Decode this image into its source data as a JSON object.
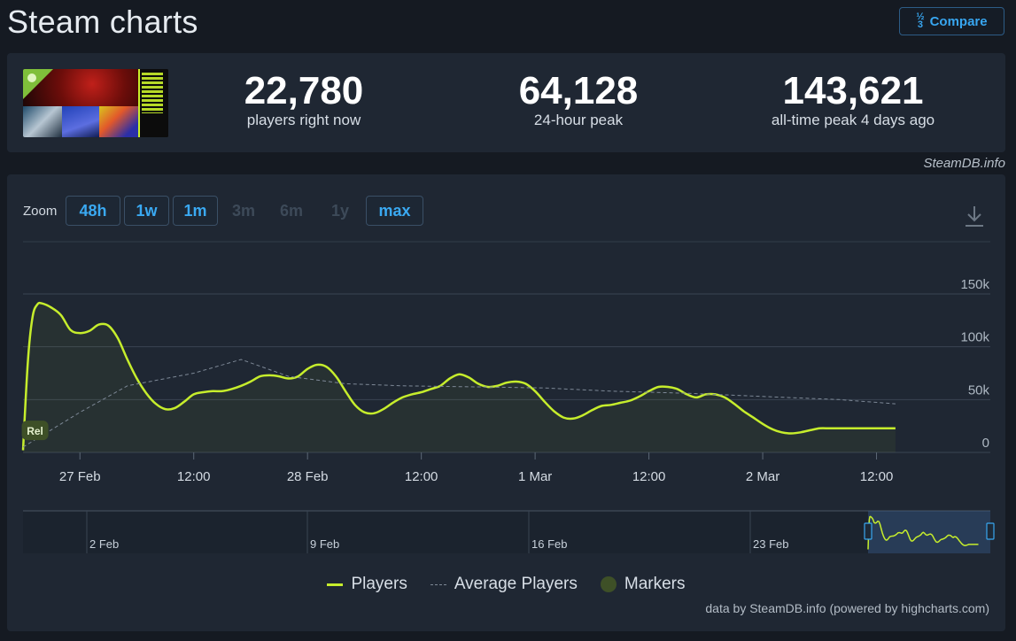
{
  "header": {
    "title": "Steam charts",
    "compare_icon": "1/2/3",
    "compare_label": "Compare"
  },
  "stats": {
    "current": {
      "value": "22,780",
      "label": "players right now"
    },
    "peak24": {
      "value": "64,128",
      "label": "24-hour peak"
    },
    "alltime": {
      "value": "143,621",
      "label": "all-time peak 4 days ago"
    }
  },
  "source_note": "SteamDB.info",
  "zoom": {
    "label": "Zoom",
    "buttons": [
      {
        "label": "48h",
        "state": "active"
      },
      {
        "label": "1w",
        "state": "active"
      },
      {
        "label": "1m",
        "state": "active"
      },
      {
        "label": "3m",
        "state": "disabled"
      },
      {
        "label": "6m",
        "state": "disabled"
      },
      {
        "label": "1y",
        "state": "disabled"
      },
      {
        "label": "max",
        "state": "active"
      }
    ]
  },
  "colors": {
    "players": "#c6ed2c",
    "average": "#7d8896",
    "marker": "#3e5027"
  },
  "chart_data": {
    "type": "line",
    "title": "",
    "xlabel": "",
    "ylabel": "",
    "ylim": [
      0,
      150000
    ],
    "yticks": [
      0,
      50000,
      100000,
      150000
    ],
    "ytick_labels": [
      "0",
      "50k",
      "100k",
      "150k"
    ],
    "xlim_hours": [
      0,
      102
    ],
    "xticks": [
      {
        "label": "27 Feb",
        "hour": 6
      },
      {
        "label": "12:00",
        "hour": 18
      },
      {
        "label": "28 Feb",
        "hour": 30
      },
      {
        "label": "12:00",
        "hour": 42
      },
      {
        "label": "1 Mar",
        "hour": 54
      },
      {
        "label": "12:00",
        "hour": 66
      },
      {
        "label": "2 Mar",
        "hour": 78
      },
      {
        "label": "12:00",
        "hour": 90
      }
    ],
    "series": [
      {
        "name": "Players",
        "x": [
          0,
          0.5,
          1,
          1.5,
          2,
          3,
          4,
          5,
          6,
          7,
          8,
          9,
          10,
          11,
          12,
          13,
          14,
          15,
          16,
          17,
          18,
          19,
          20,
          21,
          22,
          23,
          24,
          25,
          26,
          27,
          28,
          29,
          30,
          31,
          32,
          33,
          34,
          35,
          36,
          37,
          38,
          39,
          40,
          41,
          42,
          43,
          44,
          45,
          46,
          47,
          48,
          49,
          50,
          51,
          52,
          53,
          54,
          55,
          56,
          57,
          58,
          59,
          60,
          61,
          62,
          63,
          64,
          65,
          66,
          67,
          68,
          69,
          70,
          71,
          72,
          73,
          74,
          75,
          76,
          77,
          78,
          79,
          80,
          81,
          82,
          83,
          84,
          85,
          86,
          87,
          88,
          89,
          90,
          91,
          92
        ],
        "values": [
          2000,
          85000,
          128000,
          140000,
          141000,
          137000,
          130000,
          116000,
          113000,
          115000,
          121000,
          120000,
          108000,
          88000,
          70000,
          56000,
          46000,
          41000,
          42000,
          48000,
          55000,
          57000,
          58000,
          58000,
          60000,
          63000,
          67000,
          72000,
          73000,
          72000,
          70000,
          72000,
          79000,
          83000,
          81000,
          72000,
          58000,
          45000,
          38000,
          37000,
          41000,
          47000,
          52000,
          55000,
          57000,
          60000,
          63000,
          70000,
          74000,
          71000,
          65000,
          62000,
          63000,
          66000,
          67000,
          65000,
          58000,
          48000,
          39000,
          33000,
          32000,
          35000,
          40000,
          44000,
          45000,
          47000,
          49000,
          53000,
          58000,
          62000,
          62000,
          60000,
          55000,
          52000,
          55000,
          55000,
          52000,
          46000,
          39000,
          33000,
          27000,
          22000,
          19000,
          18000,
          19000,
          21000,
          22780,
          22780,
          22780,
          22780,
          22780,
          22780,
          22780,
          22780,
          22780
        ]
      },
      {
        "name": "Average Players",
        "x": [
          0,
          6,
          11,
          18,
          23,
          28,
          34,
          40,
          48,
          55,
          62,
          70,
          78,
          86,
          92
        ],
        "values": [
          5000,
          38000,
          63000,
          75000,
          88000,
          72000,
          65000,
          63000,
          62000,
          61000,
          58000,
          56000,
          53000,
          50000,
          46000
        ]
      }
    ],
    "markers": [
      {
        "label": "Rel",
        "hour": 0.8,
        "value": 20000
      }
    ],
    "navigator": {
      "labels": [
        "2 Feb",
        "9 Feb",
        "16 Feb",
        "23 Feb"
      ]
    },
    "legend": [
      "Players",
      "Average Players",
      "Markers"
    ],
    "legend_position": "bottom"
  },
  "credits": "data by SteamDB.info (powered by highcharts.com)"
}
